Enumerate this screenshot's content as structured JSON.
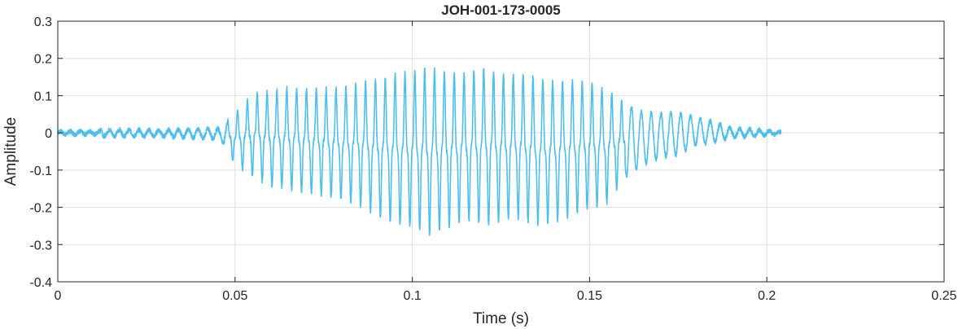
{
  "chart_data": {
    "type": "line",
    "title": "JOH-001-173-0005",
    "xlabel": "Time (s)",
    "ylabel": "Amplitude",
    "xlim": [
      0,
      0.25
    ],
    "ylim": [
      -0.4,
      0.3
    ],
    "xticks": [
      0,
      0.05,
      0.1,
      0.15,
      0.2,
      0.25
    ],
    "xtick_labels": [
      "0",
      "0.05",
      "0.1",
      "0.15",
      "0.2",
      "0.25"
    ],
    "yticks": [
      -0.4,
      -0.3,
      -0.2,
      -0.1,
      0,
      0.1,
      0.2,
      0.3
    ],
    "ytick_labels": [
      "-0.4",
      "-0.3",
      "-0.2",
      "-0.1",
      "0",
      "0.1",
      "0.2",
      "0.3"
    ],
    "grid": true,
    "series_color": "#4DBEEE",
    "series": [
      {
        "x_range": [
          0,
          0.204
        ],
        "envelope": {
          "time": [
            0,
            0.012,
            0.0125,
            0.013,
            0.03,
            0.046,
            0.05,
            0.055,
            0.06,
            0.065,
            0.07,
            0.075,
            0.08,
            0.085,
            0.09,
            0.095,
            0.1,
            0.105,
            0.11,
            0.115,
            0.12,
            0.125,
            0.13,
            0.135,
            0.14,
            0.145,
            0.15,
            0.155,
            0.16,
            0.165,
            0.17,
            0.175,
            0.18,
            0.185,
            0.19,
            0.195,
            0.2,
            0.204
          ],
          "upper": [
            0.005,
            0.006,
            0.04,
            0.01,
            0.01,
            0.015,
            0.07,
            0.13,
            0.14,
            0.15,
            0.15,
            0.15,
            0.15,
            0.17,
            0.18,
            0.2,
            0.21,
            0.22,
            0.21,
            0.2,
            0.22,
            0.2,
            0.2,
            0.19,
            0.18,
            0.18,
            0.17,
            0.15,
            0.1,
            0.07,
            0.065,
            0.065,
            0.05,
            0.035,
            0.015,
            0.012,
            0.008,
            0.002
          ],
          "lower": [
            -0.005,
            -0.006,
            -0.03,
            -0.01,
            -0.012,
            -0.02,
            -0.1,
            -0.14,
            -0.17,
            -0.18,
            -0.19,
            -0.2,
            -0.21,
            -0.23,
            -0.26,
            -0.29,
            -0.3,
            -0.32,
            -0.3,
            -0.28,
            -0.29,
            -0.28,
            -0.27,
            -0.29,
            -0.28,
            -0.26,
            -0.24,
            -0.22,
            -0.14,
            -0.1,
            -0.08,
            -0.07,
            -0.04,
            -0.03,
            -0.015,
            -0.012,
            -0.008,
            -0.002
          ]
        },
        "dominant_frequency_hz": 360
      }
    ]
  }
}
